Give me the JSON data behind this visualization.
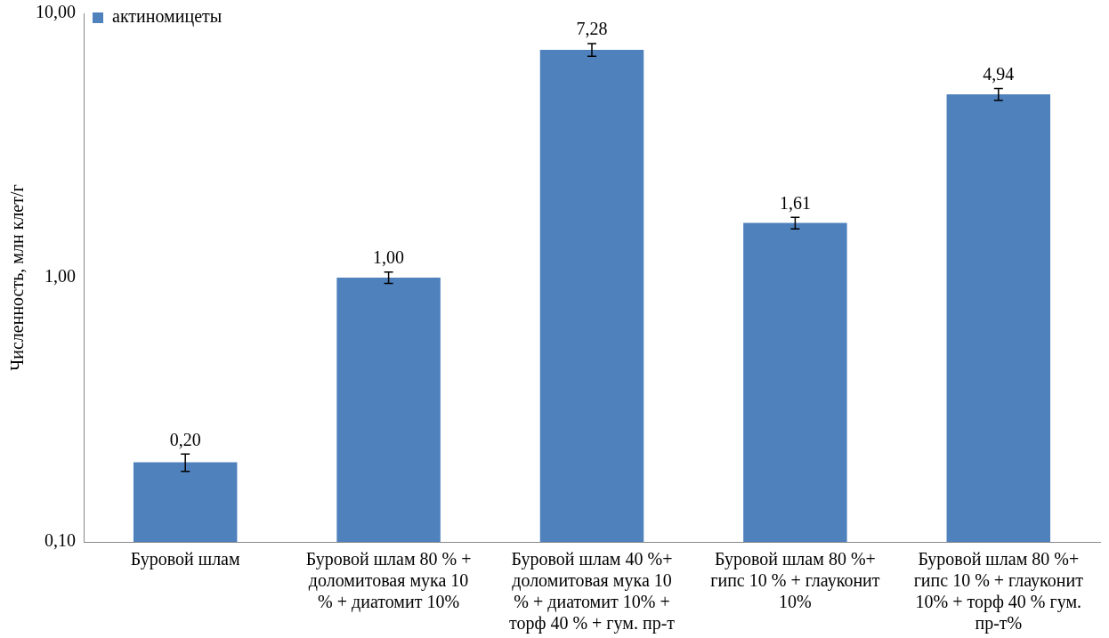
{
  "chart_data": {
    "type": "bar",
    "ylabel": "Численность, млн клет/г",
    "categories": [
      "Буровой шлам",
      "Буровой шлам 80 % + доломитовая мука 10 % + диатомит 10%",
      "Буровой шлам 40 %+ доломитовая мука 10 % + диатомит 10% + торф 40 % + гум. пр-т",
      "Буровой шлам 80 %+ гипс 10 % + глауконит 10%",
      "Буровой шлам 80 %+ гипс 10 % + глауконит 10% + торф 40 % гум. пр-т%"
    ],
    "series": [
      {
        "name": "актиномицеты",
        "color": "#4f81bd",
        "values": [
          0.2,
          1.0,
          7.28,
          1.61,
          4.94
        ],
        "errors": [
          0.015,
          0.05,
          0.4,
          0.08,
          0.25
        ],
        "value_labels": [
          "0,20",
          "1,00",
          "7,28",
          "1,61",
          "4,94"
        ]
      }
    ],
    "log": "y",
    "ylim": [
      0.1,
      10
    ],
    "yticks": [
      {
        "value": 0.1,
        "label": "0,10"
      },
      {
        "value": 1,
        "label": "1,00"
      },
      {
        "value": 10,
        "label": "10,00"
      }
    ],
    "grid": false,
    "legend": "top left"
  }
}
